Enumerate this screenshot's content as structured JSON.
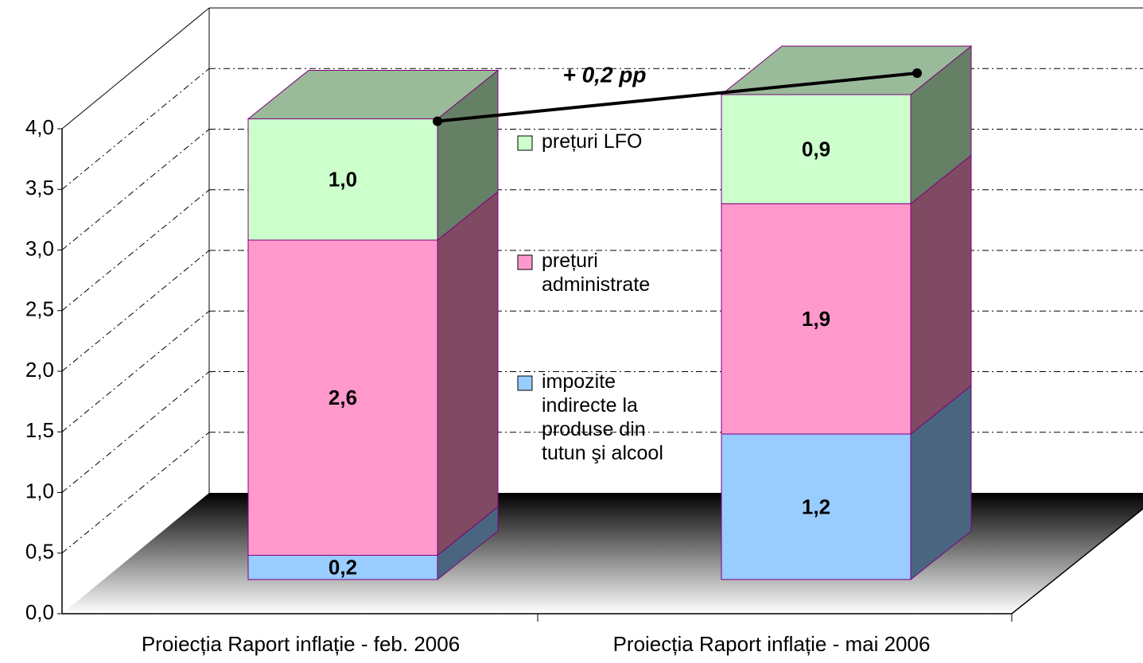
{
  "chart_data": {
    "type": "bar3d_stacked",
    "categories": [
      "Proiecția Raport inflație - feb. 2006",
      "Proiecția Raport inflație - mai 2006"
    ],
    "series": [
      {
        "name": "impozite indirecte la produse din tutun şi alcool",
        "color": "#99ccff",
        "side_color": "#4a6580",
        "values": [
          0.2,
          1.2
        ],
        "value_labels": [
          "0,2",
          "1,2"
        ]
      },
      {
        "name": "prețuri administrate",
        "color": "#ff99cc",
        "side_color": "#804a62",
        "values": [
          2.6,
          1.9
        ],
        "value_labels": [
          "2,6",
          "1,9"
        ]
      },
      {
        "name": "prețuri LFO",
        "color": "#ccffcc",
        "side_color": "#668066",
        "top_color": "#99bb99",
        "values": [
          1.0,
          0.9
        ],
        "value_labels": [
          "1,0",
          "0,9"
        ]
      }
    ],
    "annotation": "+ 0,2 pp",
    "ylim": [
      0,
      4
    ],
    "yticks": [
      {
        "value": 0,
        "label": "0,0"
      },
      {
        "value": 0.5,
        "label": "0,5"
      },
      {
        "value": 1,
        "label": "1,0"
      },
      {
        "value": 1.5,
        "label": "1,5"
      },
      {
        "value": 2,
        "label": "2,0"
      },
      {
        "value": 2.5,
        "label": "2,5"
      },
      {
        "value": 3,
        "label": "3,0"
      },
      {
        "value": 3.5,
        "label": "3,5"
      },
      {
        "value": 4,
        "label": "4,0"
      }
    ],
    "grid": true
  }
}
